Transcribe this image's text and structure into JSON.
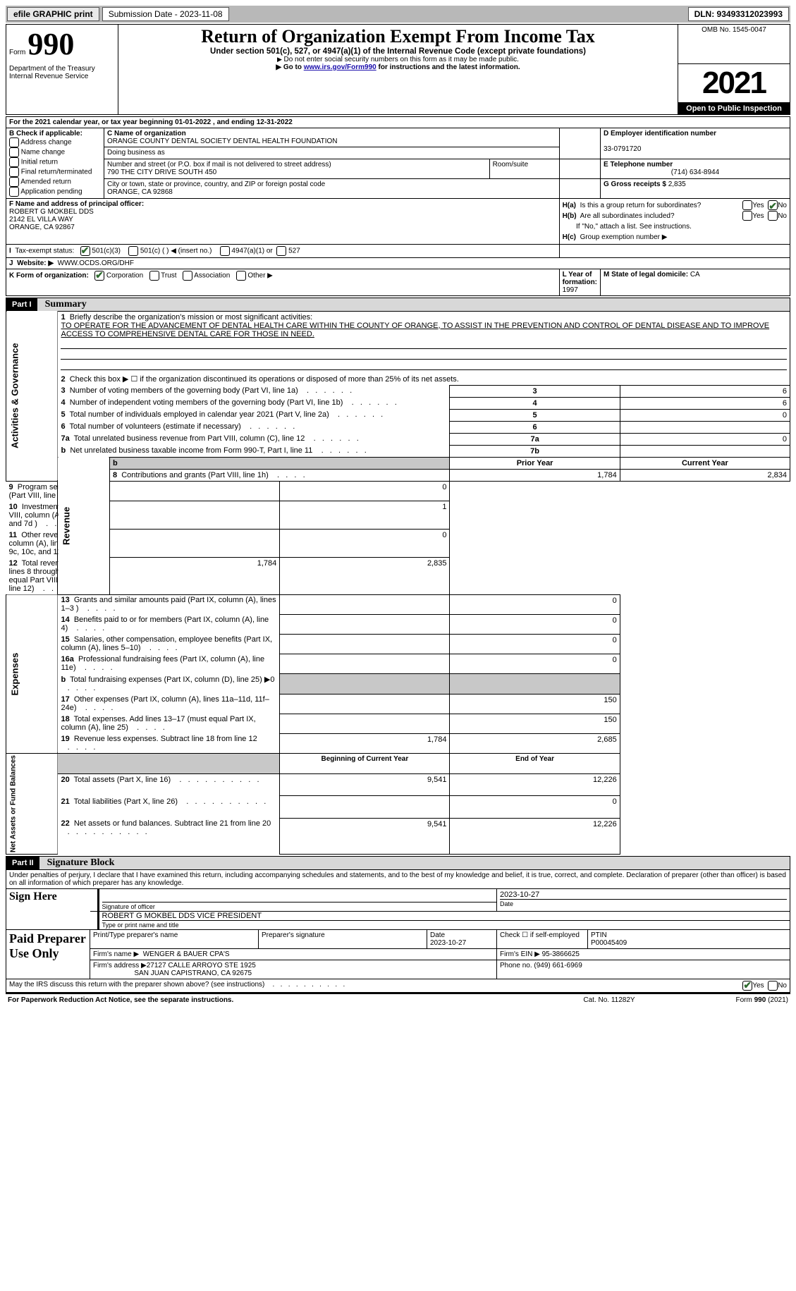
{
  "topbar": {
    "efile": "efile GRAPHIC print",
    "submission_label": "Submission Date - 2023-11-08",
    "dln_label": "DLN: 93493312023993"
  },
  "header": {
    "form_label": "Form",
    "form_number": "990",
    "dept": "Department of the Treasury",
    "irs": "Internal Revenue Service",
    "title": "Return of Organization Exempt From Income Tax",
    "subtitle": "Under section 501(c), 527, or 4947(a)(1) of the Internal Revenue Code (except private foundations)",
    "note1": "Do not enter social security numbers on this form as it may be made public.",
    "note2_pre": "Go to ",
    "note2_link": "www.irs.gov/Form990",
    "note2_post": " for instructions and the latest information.",
    "omb": "OMB No. 1545-0047",
    "year": "2021",
    "inspection": "Open to Public Inspection"
  },
  "periodA": "For the 2021 calendar year, or tax year beginning 01-01-2022   , and ending 12-31-2022",
  "B": {
    "label": "B Check if applicable:",
    "opts": [
      "Address change",
      "Name change",
      "Initial return",
      "Final return/terminated",
      "Amended return",
      "Application pending"
    ]
  },
  "C": {
    "label": "C Name of organization",
    "name": "ORANGE COUNTY DENTAL SOCIETY DENTAL HEALTH FOUNDATION",
    "dba_label": "Doing business as",
    "street_label": "Number and street (or P.O. box if mail is not delivered to street address)",
    "room_label": "Room/suite",
    "street": "790 THE CITY DRIVE SOUTH 450",
    "city_label": "City or town, state or province, country, and ZIP or foreign postal code",
    "city": "ORANGE, CA  92868"
  },
  "D": {
    "label": "D Employer identification number",
    "value": "33-0791720"
  },
  "E": {
    "label": "E Telephone number",
    "value": "(714) 634-8944"
  },
  "G": {
    "label": "G Gross receipts $ ",
    "value": "2,835"
  },
  "F": {
    "label": "F Name and address of principal officer:",
    "name": "ROBERT G MOKBEL DDS",
    "addr1": "2142 EL VILLA WAY",
    "addr2": "ORANGE, CA  92867"
  },
  "H": {
    "a": "Is this a group return for subordinates?",
    "b": "Are all subordinates included?",
    "b_note": "If \"No,\" attach a list. See instructions.",
    "c": "Group exemption number ▶",
    "yes": "Yes",
    "no": "No"
  },
  "I": {
    "label": "Tax-exempt status:",
    "opt1": "501(c)(3)",
    "opt2": "501(c) (  ) ◀ (insert no.)",
    "opt3": "4947(a)(1) or",
    "opt4": "527"
  },
  "J": {
    "label": "Website: ▶",
    "value": "WWW.OCDS.ORG/DHF"
  },
  "K": {
    "label": "K Form of organization:",
    "opts": [
      "Corporation",
      "Trust",
      "Association",
      "Other ▶"
    ]
  },
  "L": {
    "label": "L Year of formation: ",
    "value": "1997"
  },
  "M": {
    "label": "M State of legal domicile: ",
    "value": "CA"
  },
  "part1": {
    "title": "Part I",
    "heading": "Summary",
    "line1_label": "Briefly describe the organization's mission or most significant activities:",
    "line1_text": "TO OPERATE FOR THE ADVANCEMENT OF DENTAL HEALTH CARE WITHIN THE COUNTY OF ORANGE, TO ASSIST IN THE PREVENTION AND CONTROL OF DENTAL DISEASE AND TO IMPROVE ACCESS TO COMPREHENSIVE DENTAL CARE FOR THOSE IN NEED.",
    "line2": "Check this box ▶ ☐  if the organization discontinued its operations or disposed of more than 25% of its net assets.",
    "sections": {
      "activities": "Activities & Governance",
      "revenue": "Revenue",
      "expenses": "Expenses",
      "netassets": "Net Assets or Fund Balances"
    },
    "col_prior": "Prior Year",
    "col_current": "Current Year",
    "col_begin": "Beginning of Current Year",
    "col_end": "End of Year",
    "rows_gov": [
      {
        "n": "3",
        "t": "Number of voting members of the governing body (Part VI, line 1a)",
        "box": "3",
        "v": "6"
      },
      {
        "n": "4",
        "t": "Number of independent voting members of the governing body (Part VI, line 1b)",
        "box": "4",
        "v": "6"
      },
      {
        "n": "5",
        "t": "Total number of individuals employed in calendar year 2021 (Part V, line 2a)",
        "box": "5",
        "v": "0"
      },
      {
        "n": "6",
        "t": "Total number of volunteers (estimate if necessary)",
        "box": "6",
        "v": ""
      },
      {
        "n": "7a",
        "t": "Total unrelated business revenue from Part VIII, column (C), line 12",
        "box": "7a",
        "v": "0"
      },
      {
        "n": "b",
        "t": "Net unrelated business taxable income from Form 990-T, Part I, line 11",
        "box": "7b",
        "v": ""
      }
    ],
    "rows_rev": [
      {
        "n": "8",
        "t": "Contributions and grants (Part VIII, line 1h)",
        "p": "1,784",
        "c": "2,834"
      },
      {
        "n": "9",
        "t": "Program service revenue (Part VIII, line 2g)",
        "p": "",
        "c": "0"
      },
      {
        "n": "10",
        "t": "Investment income (Part VIII, column (A), lines 3, 4, and 7d )",
        "p": "",
        "c": "1"
      },
      {
        "n": "11",
        "t": "Other revenue (Part VIII, column (A), lines 5, 6d, 8c, 9c, 10c, and 11e)",
        "p": "",
        "c": "0"
      },
      {
        "n": "12",
        "t": "Total revenue—add lines 8 through 11 (must equal Part VIII, column (A), line 12)",
        "p": "1,784",
        "c": "2,835"
      }
    ],
    "rows_exp": [
      {
        "n": "13",
        "t": "Grants and similar amounts paid (Part IX, column (A), lines 1–3 )",
        "p": "",
        "c": "0"
      },
      {
        "n": "14",
        "t": "Benefits paid to or for members (Part IX, column (A), line 4)",
        "p": "",
        "c": "0"
      },
      {
        "n": "15",
        "t": "Salaries, other compensation, employee benefits (Part IX, column (A), lines 5–10)",
        "p": "",
        "c": "0"
      },
      {
        "n": "16a",
        "t": "Professional fundraising fees (Part IX, column (A), line 11e)",
        "p": "",
        "c": "0"
      },
      {
        "n": "b",
        "t": "Total fundraising expenses (Part IX, column (D), line 25) ▶0",
        "p": "GRAY",
        "c": "GRAY"
      },
      {
        "n": "17",
        "t": "Other expenses (Part IX, column (A), lines 11a–11d, 11f–24e)",
        "p": "",
        "c": "150"
      },
      {
        "n": "18",
        "t": "Total expenses. Add lines 13–17 (must equal Part IX, column (A), line 25)",
        "p": "",
        "c": "150"
      },
      {
        "n": "19",
        "t": "Revenue less expenses. Subtract line 18 from line 12",
        "p": "1,784",
        "c": "2,685"
      }
    ],
    "rows_net": [
      {
        "n": "20",
        "t": "Total assets (Part X, line 16)",
        "p": "9,541",
        "c": "12,226"
      },
      {
        "n": "21",
        "t": "Total liabilities (Part X, line 26)",
        "p": "",
        "c": "0"
      },
      {
        "n": "22",
        "t": "Net assets or fund balances. Subtract line 21 from line 20",
        "p": "9,541",
        "c": "12,226"
      }
    ]
  },
  "part2": {
    "title": "Part II",
    "heading": "Signature Block",
    "declaration": "Under penalties of perjury, I declare that I have examined this return, including accompanying schedules and statements, and to the best of my knowledge and belief, it is true, correct, and complete. Declaration of preparer (other than officer) is based on all information of which preparer has any knowledge.",
    "sign_here": "Sign Here",
    "sig_officer": "Signature of officer",
    "sig_date": "2023-10-27",
    "date_label": "Date",
    "officer_name": "ROBERT G MOKBEL DDS  VICE PRESIDENT",
    "officer_name_label": "Type or print name and title",
    "paid": "Paid Preparer Use Only",
    "prep_name_label": "Print/Type preparer's name",
    "prep_sig_label": "Preparer's signature",
    "prep_date_label": "Date",
    "prep_date": "2023-10-27",
    "check_self": "Check ☐ if self-employed",
    "ptin_label": "PTIN",
    "ptin": "P00045409",
    "firm_name_label": "Firm's name   ▶",
    "firm_name": "WENGER & BAUER CPA'S",
    "firm_ein_label": "Firm's EIN ▶",
    "firm_ein": "95-3866625",
    "firm_addr_label": "Firm's address ▶",
    "firm_addr1": "27127 CALLE ARROYO STE 1925",
    "firm_addr2": "SAN JUAN CAPISTRANO, CA  92675",
    "phone_label": "Phone no.",
    "phone": "(949) 661-6969",
    "discuss": "May the IRS discuss this return with the preparer shown above? (see instructions)"
  },
  "footer": {
    "paperwork": "For Paperwork Reduction Act Notice, see the separate instructions.",
    "cat": "Cat. No. 11282Y",
    "formrev": "Form 990 (2021)"
  }
}
